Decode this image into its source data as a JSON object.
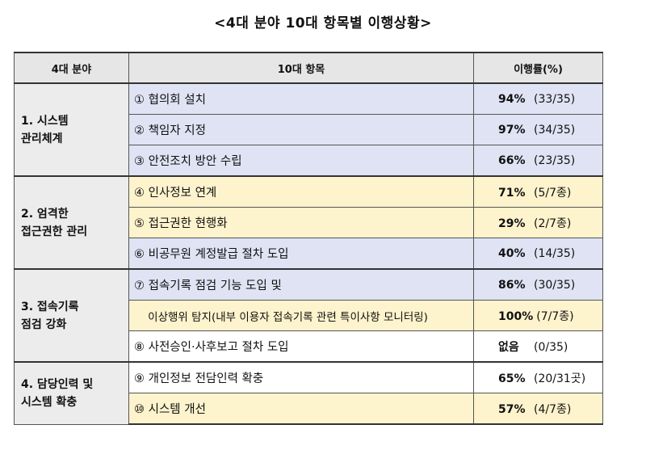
{
  "title": "<4대 분야 10대 항목별 이행상황>",
  "headers": {
    "area": "4대 분야",
    "item": "10대 항목",
    "rate": "이행률(%)"
  },
  "groups": [
    {
      "name": "1. 시스템\n    관리체계",
      "rows": [
        {
          "item": "① 협의회 설치",
          "pct": "94%",
          "count": "(33/35)",
          "color": "blue"
        },
        {
          "item": "② 책임자 지정",
          "pct": "97%",
          "count": "(34/35)",
          "color": "blue"
        },
        {
          "item": "③ 안전조치 방안 수립",
          "pct": "66%",
          "count": "(23/35)",
          "color": "blue"
        }
      ]
    },
    {
      "name": "2. 엄격한\n    접근권한 관리",
      "rows": [
        {
          "item": "④ 인사정보 연계",
          "pct": "71%",
          "count": "(5/7종)",
          "color": "yellow"
        },
        {
          "item": "⑤ 접근권한 현행화",
          "pct": "29%",
          "count": "(2/7종)",
          "color": "yellow"
        },
        {
          "item": "⑥ 비공무원 계정발급 절차 도입",
          "pct": "40%",
          "count": "(14/35)",
          "color": "blue"
        }
      ]
    },
    {
      "name": "3. 접속기록\n    점검 강화",
      "rows": [
        {
          "item": "⑦ 접속기록 점검 기능 도입 및",
          "pct": "86%",
          "count": "(30/35)",
          "color": "blue"
        },
        {
          "item": "    이상행위 탐지(내부 이용자 접속기록 관련 특이사항 모니터링)",
          "pct": "100%",
          "count": "(7/7종)",
          "color": "yellow"
        },
        {
          "item": "⑧ 사전승인·사후보고 절차 도입",
          "pct": "없음",
          "count": "(0/35)",
          "color": "white"
        }
      ]
    },
    {
      "name": "4. 담당인력 및\n    시스템 확충",
      "rows": [
        {
          "item": "⑨ 개인정보 전담인력 확충",
          "pct": "65%",
          "count": "(20/31곳)",
          "color": "white"
        },
        {
          "item": "⑩ 시스템 개선",
          "pct": "57%",
          "count": "(4/7종)",
          "color": "yellow"
        }
      ]
    }
  ],
  "colors": {
    "blue": "#dfe3f4",
    "yellow": "#fdf3cc",
    "header": "#e6e6e6",
    "category": "#ececec"
  }
}
